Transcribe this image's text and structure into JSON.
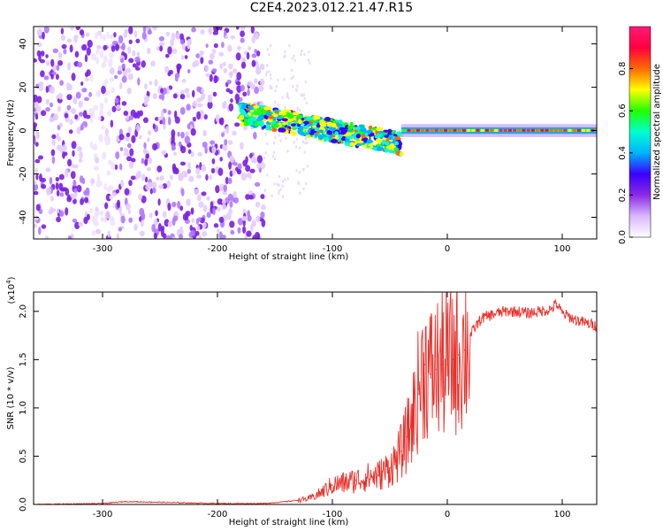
{
  "title": "C2E4.2023.012.21.47.R15",
  "chart_data": [
    {
      "type": "heatmap",
      "xlabel": "Height of straight line (km)",
      "ylabel": "Frequency (Hz)",
      "xlim": [
        -360,
        130
      ],
      "ylim": [
        -50,
        48
      ],
      "xticks": [
        -300,
        -200,
        -100,
        0,
        100
      ],
      "xtick_labels": [
        "-300",
        "-200",
        "-100",
        "0",
        "100"
      ],
      "yticks": [
        -40,
        -20,
        0,
        20,
        40
      ],
      "ytick_labels": [
        "-40",
        "-20",
        "0",
        "20",
        "40"
      ],
      "colorbar": {
        "label": "Normalized spectral amplitude",
        "range": [
          0.0,
          1.0
        ],
        "ticks": [
          0.0,
          0.2,
          0.4,
          0.6,
          0.8
        ],
        "tick_labels": [
          "0.0",
          "0.2",
          "0.4",
          "0.6",
          "0.8"
        ],
        "colors": [
          "#ffffff",
          "#d9b8ff",
          "#8a2be2",
          "#3a00ff",
          "#00b4ff",
          "#00ffd0",
          "#22ff00",
          "#ffff00",
          "#ff6a00",
          "#ff0040",
          "#ff1a75"
        ]
      },
      "regions": [
        {
          "name": "broadband noise",
          "x_range": [
            -360,
            -160
          ],
          "freq_range": [
            -50,
            48
          ],
          "amplitude": 0.1
        },
        {
          "name": "signal band",
          "x_range": [
            -180,
            -40
          ],
          "freq_center": [
            8,
            -6
          ],
          "amplitude": 0.45
        },
        {
          "name": "narrow carrier",
          "x_range": [
            -40,
            130
          ],
          "freq_center": 0,
          "amplitude": 0.9
        }
      ]
    },
    {
      "type": "line",
      "xlabel": "Height of straight line (km)",
      "ylabel": "SNR (10 * v/v)",
      "scale_note": "(x10",
      "scale_exp": "4",
      "scale_close": ")",
      "xlim": [
        -360,
        130
      ],
      "ylim": [
        0,
        2.2
      ],
      "xticks": [
        -300,
        -200,
        -100,
        0,
        100
      ],
      "xtick_labels": [
        "-300",
        "-200",
        "-100",
        "0",
        "100"
      ],
      "yticks": [
        0,
        0.5,
        1.0,
        1.5,
        2.0
      ],
      "ytick_labels": [
        "0.0",
        "0.5",
        "1.0",
        "1.5",
        "2.0"
      ],
      "series": [
        {
          "color": "#e8302a",
          "x": [
            -360,
            -300,
            -280,
            -200,
            -160,
            -140,
            -120,
            -110,
            -100,
            -90,
            -80,
            -70,
            -60,
            -50,
            -45,
            -40,
            -35,
            -30,
            -25,
            -20,
            -15,
            -10,
            -5,
            0,
            5,
            10,
            15,
            20,
            25,
            30,
            40,
            50,
            60,
            70,
            80,
            90,
            95,
            100,
            110,
            120,
            130
          ],
          "values": [
            0.0,
            0.01,
            0.03,
            0.01,
            0.01,
            0.03,
            0.06,
            0.12,
            0.2,
            0.22,
            0.25,
            0.28,
            0.3,
            0.38,
            0.45,
            0.55,
            0.7,
            0.9,
            1.2,
            1.45,
            1.35,
            1.4,
            1.45,
            1.45,
            1.5,
            1.55,
            1.6,
            1.75,
            1.85,
            1.93,
            1.97,
            2.0,
            2.0,
            1.98,
            2.0,
            2.02,
            2.08,
            1.98,
            1.92,
            1.88,
            1.85
          ]
        }
      ]
    }
  ]
}
